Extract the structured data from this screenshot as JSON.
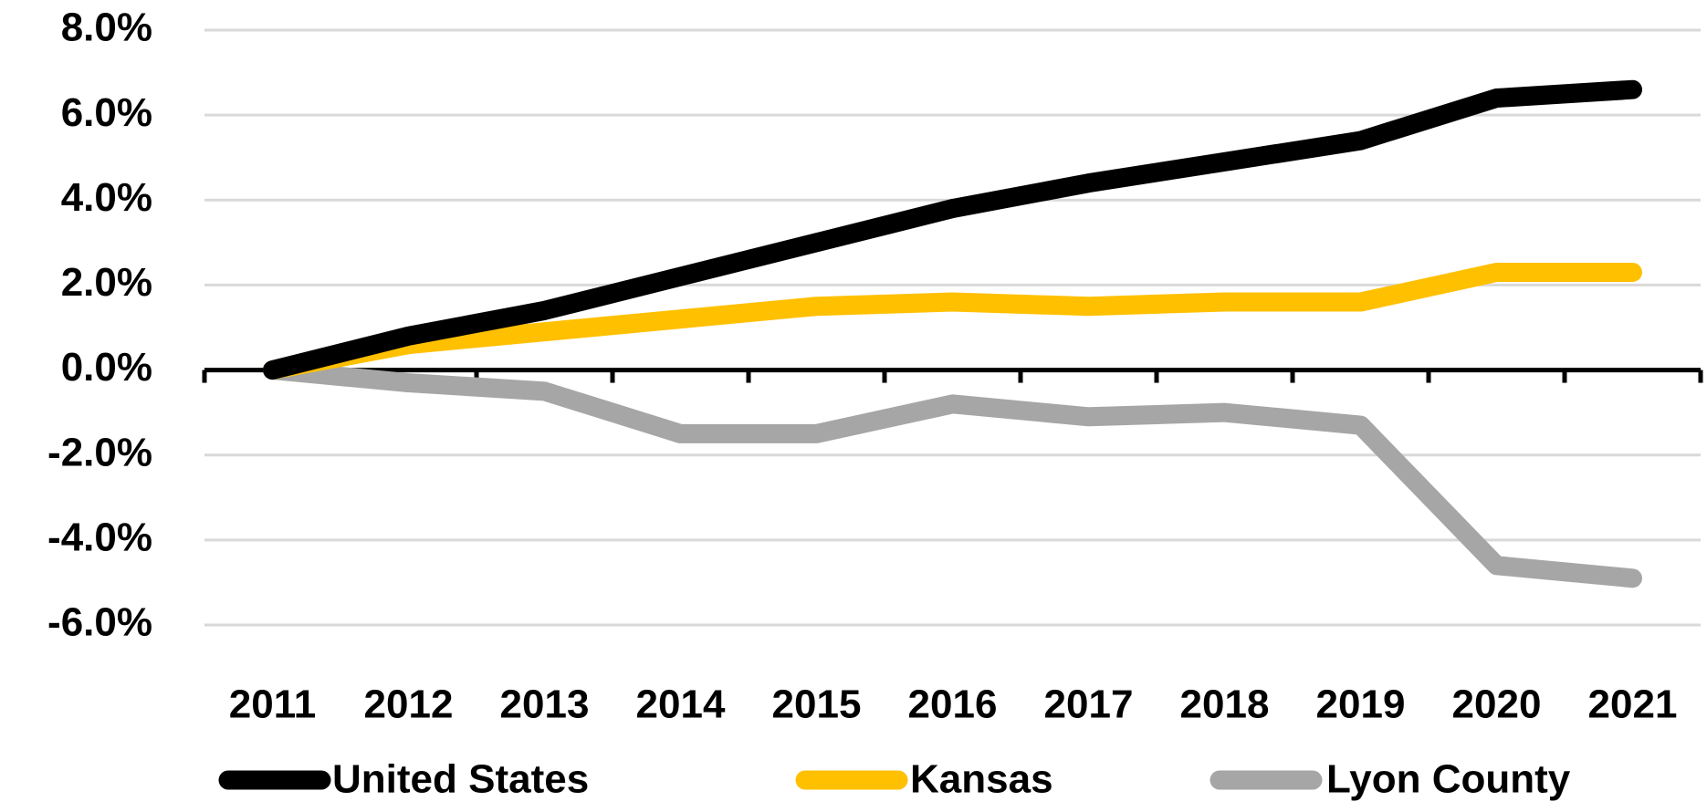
{
  "chart_data": {
    "type": "line",
    "categories": [
      "2011",
      "2012",
      "2013",
      "2014",
      "2015",
      "2016",
      "2017",
      "2018",
      "2019",
      "2020",
      "2021"
    ],
    "series": [
      {
        "name": "United States",
        "color": "#000000",
        "values": [
          0,
          0.8,
          1.4,
          2.2,
          3.0,
          3.8,
          4.4,
          4.9,
          5.4,
          6.4,
          6.6
        ]
      },
      {
        "name": "Kansas",
        "color": "#ffc000",
        "values": [
          0,
          0.6,
          0.9,
          1.2,
          1.5,
          1.6,
          1.5,
          1.6,
          1.6,
          2.3,
          2.3
        ]
      },
      {
        "name": "Lyon County",
        "color": "#a6a6a6",
        "values": [
          0,
          -0.3,
          -0.5,
          -1.5,
          -1.5,
          -0.8,
          -1.1,
          -1.0,
          -1.3,
          -4.6,
          -4.9
        ]
      }
    ],
    "ylim": [
      -6,
      8
    ],
    "yticks": [
      {
        "value": -6,
        "label": "-6.0%"
      },
      {
        "value": -4,
        "label": "-4.0%"
      },
      {
        "value": -2,
        "label": "-2.0%"
      },
      {
        "value": 0,
        "label": "0.0%"
      },
      {
        "value": 2,
        "label": "2.0%"
      },
      {
        "value": 4,
        "label": "4.0%"
      },
      {
        "value": 6,
        "label": "6.0%"
      },
      {
        "value": 8,
        "label": "8.0%"
      }
    ],
    "grid": true,
    "legend": "bottom"
  }
}
